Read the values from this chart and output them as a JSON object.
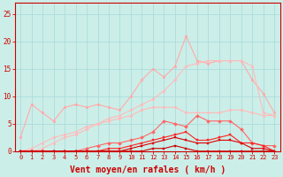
{
  "x": [
    0,
    1,
    2,
    3,
    4,
    5,
    6,
    7,
    8,
    9,
    10,
    11,
    12,
    13,
    14,
    15,
    16,
    17,
    18,
    19,
    20,
    21,
    22,
    23
  ],
  "bg_color": "#cceee8",
  "grid_color": "#aadddd",
  "series": [
    {
      "values": [
        2.5,
        8.5,
        7.0,
        5.5,
        8.0,
        8.5,
        8.0,
        8.5,
        8.0,
        7.5,
        10.0,
        13.0,
        15.0,
        13.5,
        15.5,
        21.0,
        16.5,
        16.0,
        16.5,
        16.5,
        16.5,
        13.0,
        10.5,
        7.0
      ],
      "color": "#ffaaaa",
      "lw": 0.8,
      "ms": 2.0,
      "marker": "o"
    },
    {
      "values": [
        0.0,
        0.0,
        0.5,
        1.5,
        2.5,
        3.0,
        4.0,
        5.0,
        6.0,
        6.5,
        7.5,
        8.5,
        9.5,
        11.0,
        13.0,
        15.5,
        16.0,
        16.5,
        16.5,
        16.5,
        16.5,
        15.5,
        7.0,
        6.5
      ],
      "color": "#ffbbbb",
      "lw": 0.8,
      "ms": 2.0,
      "marker": "o"
    },
    {
      "values": [
        0.0,
        0.5,
        1.5,
        2.5,
        3.0,
        3.5,
        4.5,
        5.0,
        5.5,
        6.0,
        6.5,
        7.5,
        8.0,
        8.0,
        8.0,
        7.0,
        7.0,
        7.0,
        7.0,
        7.5,
        7.5,
        7.0,
        6.5,
        6.5
      ],
      "color": "#ffbbbb",
      "lw": 0.8,
      "ms": 2.0,
      "marker": "o"
    },
    {
      "values": [
        0.0,
        0.0,
        0.0,
        0.0,
        0.0,
        0.0,
        0.5,
        1.0,
        1.5,
        1.5,
        2.0,
        2.5,
        3.5,
        5.5,
        5.0,
        4.5,
        6.5,
        5.5,
        5.5,
        5.5,
        4.0,
        1.5,
        1.0,
        1.0
      ],
      "color": "#ff6666",
      "lw": 0.8,
      "ms": 2.0,
      "marker": "D"
    },
    {
      "values": [
        0.0,
        0.0,
        0.0,
        0.0,
        0.0,
        0.0,
        0.0,
        0.0,
        0.5,
        0.5,
        1.0,
        1.5,
        2.0,
        2.5,
        3.0,
        3.5,
        2.0,
        2.0,
        2.5,
        3.0,
        1.5,
        1.5,
        1.0,
        0.0
      ],
      "color": "#ff2222",
      "lw": 0.8,
      "ms": 2.0,
      "marker": "s"
    },
    {
      "values": [
        0.0,
        0.0,
        0.0,
        0.0,
        0.0,
        0.0,
        0.0,
        0.0,
        0.0,
        0.0,
        0.5,
        1.0,
        1.5,
        2.0,
        2.5,
        2.0,
        1.5,
        1.5,
        2.0,
        2.0,
        1.5,
        0.5,
        0.5,
        0.0
      ],
      "color": "#dd0000",
      "lw": 0.8,
      "ms": 1.8,
      "marker": "s"
    },
    {
      "values": [
        0.0,
        0.0,
        0.0,
        0.0,
        0.0,
        0.0,
        0.0,
        0.0,
        0.0,
        0.0,
        0.0,
        0.0,
        0.5,
        0.5,
        1.0,
        0.5,
        0.0,
        0.0,
        0.0,
        0.0,
        0.0,
        0.0,
        0.0,
        0.0
      ],
      "color": "#cc0000",
      "lw": 0.8,
      "ms": 1.5,
      "marker": "s"
    }
  ],
  "xlabel": "Vent moyen/en rafales ( km/h )",
  "ylim": [
    0,
    27
  ],
  "yticks": [
    0,
    5,
    10,
    15,
    20,
    25
  ],
  "xtick_fontsize": 5.0,
  "ytick_fontsize": 5.5,
  "xlabel_fontsize": 7.0,
  "tick_color": "#cc0000",
  "spine_color": "#cc0000"
}
